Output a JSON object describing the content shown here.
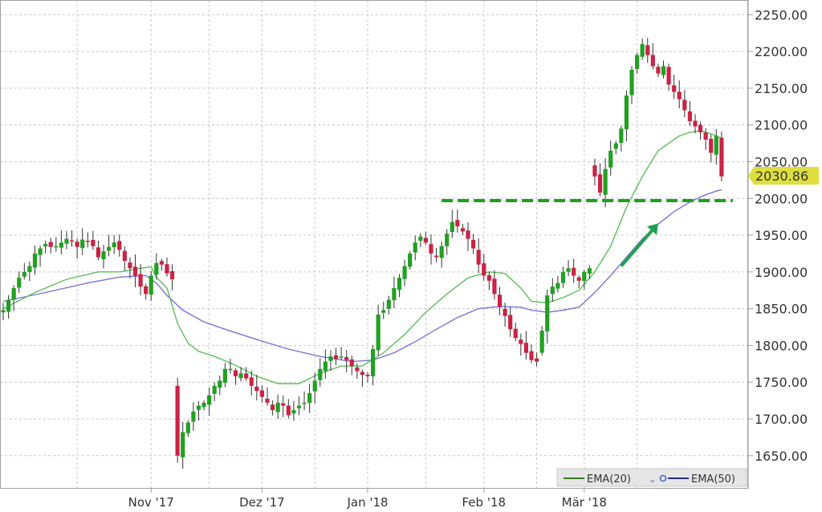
{
  "chart_data": {
    "type": "candlestick",
    "y_axis": {
      "position": "right",
      "ylim": [
        1605,
        2270
      ],
      "ticks": [
        1650,
        1700,
        1750,
        1800,
        1850,
        1900,
        1950,
        2000,
        2050,
        2100,
        2150,
        2200,
        2250
      ],
      "tick_labels": [
        "1650.00",
        "1700.00",
        "1750.00",
        "1800.00",
        "1850.00",
        "1900.00",
        "1950.00",
        "2000.00",
        "2050.00",
        "2100.00",
        "2150.00",
        "2200.00",
        "2250.00"
      ]
    },
    "x_axis": {
      "ticks": [
        {
          "label": "Nov '17",
          "index": 28
        },
        {
          "label": "Dez '17",
          "index": 49
        },
        {
          "label": "Jan '18",
          "index": 69
        },
        {
          "label": "Feb '18",
          "index": 91
        },
        {
          "label": "Mär '18",
          "index": 110
        }
      ],
      "n_bars": 137
    },
    "grid": true,
    "colors": {
      "up": "#22a022",
      "down": "#cc2244",
      "ema20": "#5bbf5b",
      "ema50": "#7b73d6",
      "support": "#1e9e1e",
      "arrow": "#22a050",
      "price_bg": "#dede3c"
    },
    "legend": {
      "placement": "bottom-right",
      "entries": [
        {
          "name": "EMA(20)",
          "color": "#3a7d22"
        },
        {
          "name": "EMA(50)",
          "color": "#2a2a8a"
        }
      ]
    },
    "last_price": {
      "value": 2030.86,
      "label": "2030.86"
    },
    "annotations": [
      {
        "type": "support-line",
        "y": 1997,
        "from_index": 83,
        "to_index": 136
      },
      {
        "type": "arrow",
        "from": {
          "index": 117,
          "value": 1908
        },
        "to": {
          "index": 124,
          "value": 1966
        }
      }
    ],
    "candle_segments": [
      {
        "start": 0,
        "o": 1845,
        "c": 1848,
        "data": [
          1845,
          1862,
          1878,
          1892,
          1900,
          1908,
          1925,
          1932,
          1938,
          1934,
          1935,
          1940,
          1945,
          1942,
          1934,
          1944,
          1942,
          1935,
          1920,
          1928,
          1934,
          1940,
          1930,
          1915,
          1905,
          1895,
          1880,
          1870,
          1895,
          1912,
          1910,
          1898,
          1890
        ]
      },
      {
        "start": 33,
        "o": 1745,
        "c": 1650,
        "data": [
          1645,
          1682,
          1695,
          1710,
          1718,
          1722,
          1732,
          1745,
          1752,
          1768,
          1768,
          1758,
          1762,
          1755,
          1745,
          1738,
          1730,
          1722,
          1712,
          1722,
          1718,
          1705,
          1712,
          1718,
          1722,
          1735,
          1752,
          1768,
          1778,
          1785,
          1782,
          1785,
          1780,
          1772,
          1765,
          1760,
          1758
        ]
      },
      {
        "start": 70,
        "o": 1758,
        "c": 1795,
        "data": [
          1830,
          1842,
          1848,
          1862,
          1878,
          1892,
          1908,
          1925,
          1940,
          1948,
          1940,
          1925,
          1920,
          1935,
          1952,
          1968,
          1962,
          1955,
          1945,
          1932,
          1910,
          1895,
          1888,
          1870,
          1852,
          1840,
          1822,
          1810,
          1802,
          1790,
          1780,
          1778
        ]
      },
      {
        "start": 102,
        "o": 1790,
        "c": 1820,
        "data": [
          1858,
          1868,
          1880,
          1885,
          1900,
          1905,
          1895,
          1888,
          1900,
          1905
        ]
      },
      {
        "start": 112,
        "o": 2045,
        "c": 2030,
        "data": [
          2022,
          2008,
          2040,
          2065,
          2075,
          2095,
          2140,
          2175,
          2195,
          2210,
          2195,
          2180,
          2170,
          2180,
          2155,
          2145,
          2135,
          2120,
          2105,
          2098,
          2090,
          2080,
          2062,
          2085,
          2030
        ]
      }
    ],
    "ema20": [
      [
        0,
        1850
      ],
      [
        6,
        1872
      ],
      [
        12,
        1890
      ],
      [
        18,
        1900
      ],
      [
        22,
        1900
      ],
      [
        26,
        1905
      ],
      [
        28,
        1907
      ],
      [
        29,
        1893
      ],
      [
        31,
        1878
      ],
      [
        33,
        1830
      ],
      [
        35,
        1803
      ],
      [
        37,
        1792
      ],
      [
        40,
        1785
      ],
      [
        44,
        1773
      ],
      [
        48,
        1758
      ],
      [
        52,
        1748
      ],
      [
        56,
        1748
      ],
      [
        60,
        1762
      ],
      [
        64,
        1772
      ],
      [
        68,
        1772
      ],
      [
        72,
        1790
      ],
      [
        76,
        1815
      ],
      [
        80,
        1845
      ],
      [
        84,
        1870
      ],
      [
        88,
        1892
      ],
      [
        92,
        1900
      ],
      [
        95,
        1898
      ],
      [
        98,
        1878
      ],
      [
        100,
        1860
      ],
      [
        103,
        1858
      ],
      [
        106,
        1865
      ],
      [
        109,
        1875
      ],
      [
        112,
        1900
      ],
      [
        115,
        1935
      ],
      [
        118,
        1988
      ],
      [
        121,
        2030
      ],
      [
        124,
        2065
      ],
      [
        128,
        2085
      ],
      [
        130,
        2090
      ],
      [
        132,
        2092
      ],
      [
        134,
        2088
      ],
      [
        136,
        2082
      ]
    ],
    "ema50": [
      [
        0,
        1860
      ],
      [
        8,
        1872
      ],
      [
        16,
        1885
      ],
      [
        22,
        1893
      ],
      [
        27,
        1895
      ],
      [
        29,
        1885
      ],
      [
        31,
        1868
      ],
      [
        34,
        1848
      ],
      [
        38,
        1832
      ],
      [
        42,
        1822
      ],
      [
        48,
        1808
      ],
      [
        54,
        1795
      ],
      [
        60,
        1785
      ],
      [
        66,
        1778
      ],
      [
        70,
        1780
      ],
      [
        74,
        1790
      ],
      [
        78,
        1805
      ],
      [
        82,
        1822
      ],
      [
        86,
        1838
      ],
      [
        90,
        1850
      ],
      [
        94,
        1853
      ],
      [
        98,
        1852
      ],
      [
        100,
        1848
      ],
      [
        103,
        1845
      ],
      [
        106,
        1848
      ],
      [
        109,
        1852
      ],
      [
        112,
        1872
      ],
      [
        115,
        1895
      ],
      [
        118,
        1920
      ],
      [
        121,
        1945
      ],
      [
        124,
        1965
      ],
      [
        127,
        1982
      ],
      [
        130,
        1995
      ],
      [
        133,
        2005
      ],
      [
        135,
        2010
      ],
      [
        136,
        2012
      ]
    ]
  }
}
